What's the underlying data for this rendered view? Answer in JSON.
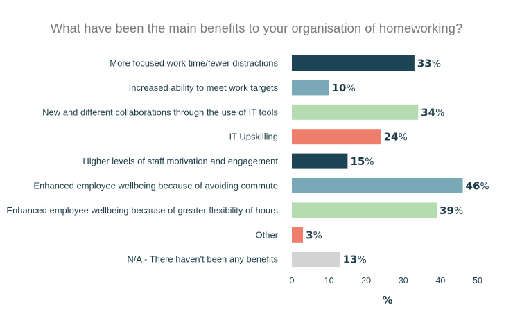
{
  "chart_data": {
    "type": "bar",
    "orientation": "horizontal",
    "title": "What have been the main benefits to your organisation of homeworking?",
    "xlabel": "%",
    "ylabel": "",
    "xlim": [
      0,
      50
    ],
    "xticks": [
      0,
      10,
      20,
      30,
      40,
      50
    ],
    "value_suffix": "%",
    "categories": [
      "More focused work time/fewer distractions",
      "Increased ability to meet work targets",
      "New and different collaborations through the use of IT tools",
      "IT Upskilling",
      "Higher levels of staff motivation and engagement",
      "Enhanced employee wellbeing because of avoiding commute",
      "Enhanced employee wellbeing because of greater flexibility of hours",
      "Other",
      "N/A - There haven't been any benefits"
    ],
    "values": [
      33,
      10,
      34,
      24,
      15,
      46,
      39,
      3,
      13
    ],
    "colors": [
      "#1d4454",
      "#79a8b6",
      "#b5dbb1",
      "#ed7f6c",
      "#1d4454",
      "#79a8b6",
      "#b5dbb1",
      "#ed7f6c",
      "#d3d3d3"
    ],
    "grid": false,
    "legend": "none"
  }
}
